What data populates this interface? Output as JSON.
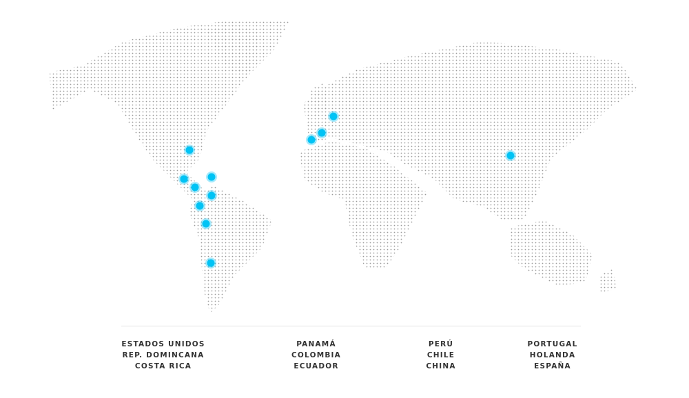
{
  "map": {
    "marker_color": "#00c3f5",
    "dot_color": "#9a9a9a",
    "icon": "dotted-world-map"
  },
  "countries": [
    [
      "ESTADOS UNIDOS",
      "REP. DOMINCANA",
      "COSTA RICA"
    ],
    [
      "PANAMÁ",
      "COLOMBIA",
      "ECUADOR"
    ],
    [
      "PERÚ",
      "CHILE",
      "CHINA"
    ],
    [
      "PORTUGAL",
      "HOLANDA",
      "ESPAÑA"
    ]
  ]
}
